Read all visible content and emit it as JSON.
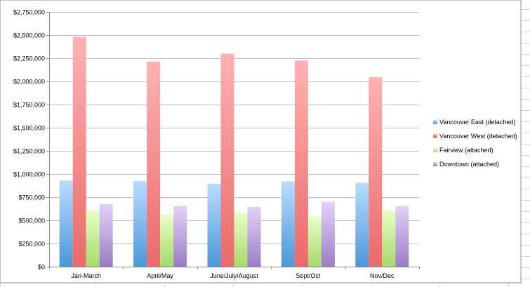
{
  "colors": {
    "sheet_grid": "#d9d9d9",
    "plot_grid": "#bfbfbf",
    "axis": "#8c8c8c"
  },
  "chart_data": {
    "type": "bar",
    "title": "",
    "xlabel": "",
    "ylabel": "",
    "categories": [
      "Jan-March",
      "April/May",
      "June/July/August",
      "Sept/Oct",
      "Nov/Dec"
    ],
    "ylim": [
      0,
      2750000
    ],
    "ytick_step": 250000,
    "y_tick_labels": [
      "$0",
      "$250,000",
      "$500,000",
      "$750,000",
      "$1,000,000",
      "$1,250,000",
      "$1,500,000",
      "$1,750,000",
      "$2,000,000",
      "$2,250,000",
      "$2,500,000",
      "$2,750,000"
    ],
    "grid": true,
    "legend_position": "right",
    "series": [
      {
        "name": "Vancouver East (detached)",
        "values": [
          930000,
          925000,
          895000,
          920000,
          905000
        ],
        "color_light": "#b9dcff",
        "color_dark": "#4a97d9"
      },
      {
        "name": "Vancouver West (detached)",
        "values": [
          2480000,
          2215000,
          2300000,
          2225000,
          2045000
        ],
        "color_light": "#ffb1b1",
        "color_dark": "#ea6a6a"
      },
      {
        "name": "Fairview (attached)",
        "values": [
          610000,
          560000,
          585000,
          545000,
          605000
        ],
        "color_light": "#e8ffc6",
        "color_dark": "#a6d96a"
      },
      {
        "name": "Downtown (attached)",
        "values": [
          675000,
          655000,
          645000,
          700000,
          655000
        ],
        "color_light": "#e2d2f5",
        "color_dark": "#9b7cc9"
      }
    ]
  }
}
